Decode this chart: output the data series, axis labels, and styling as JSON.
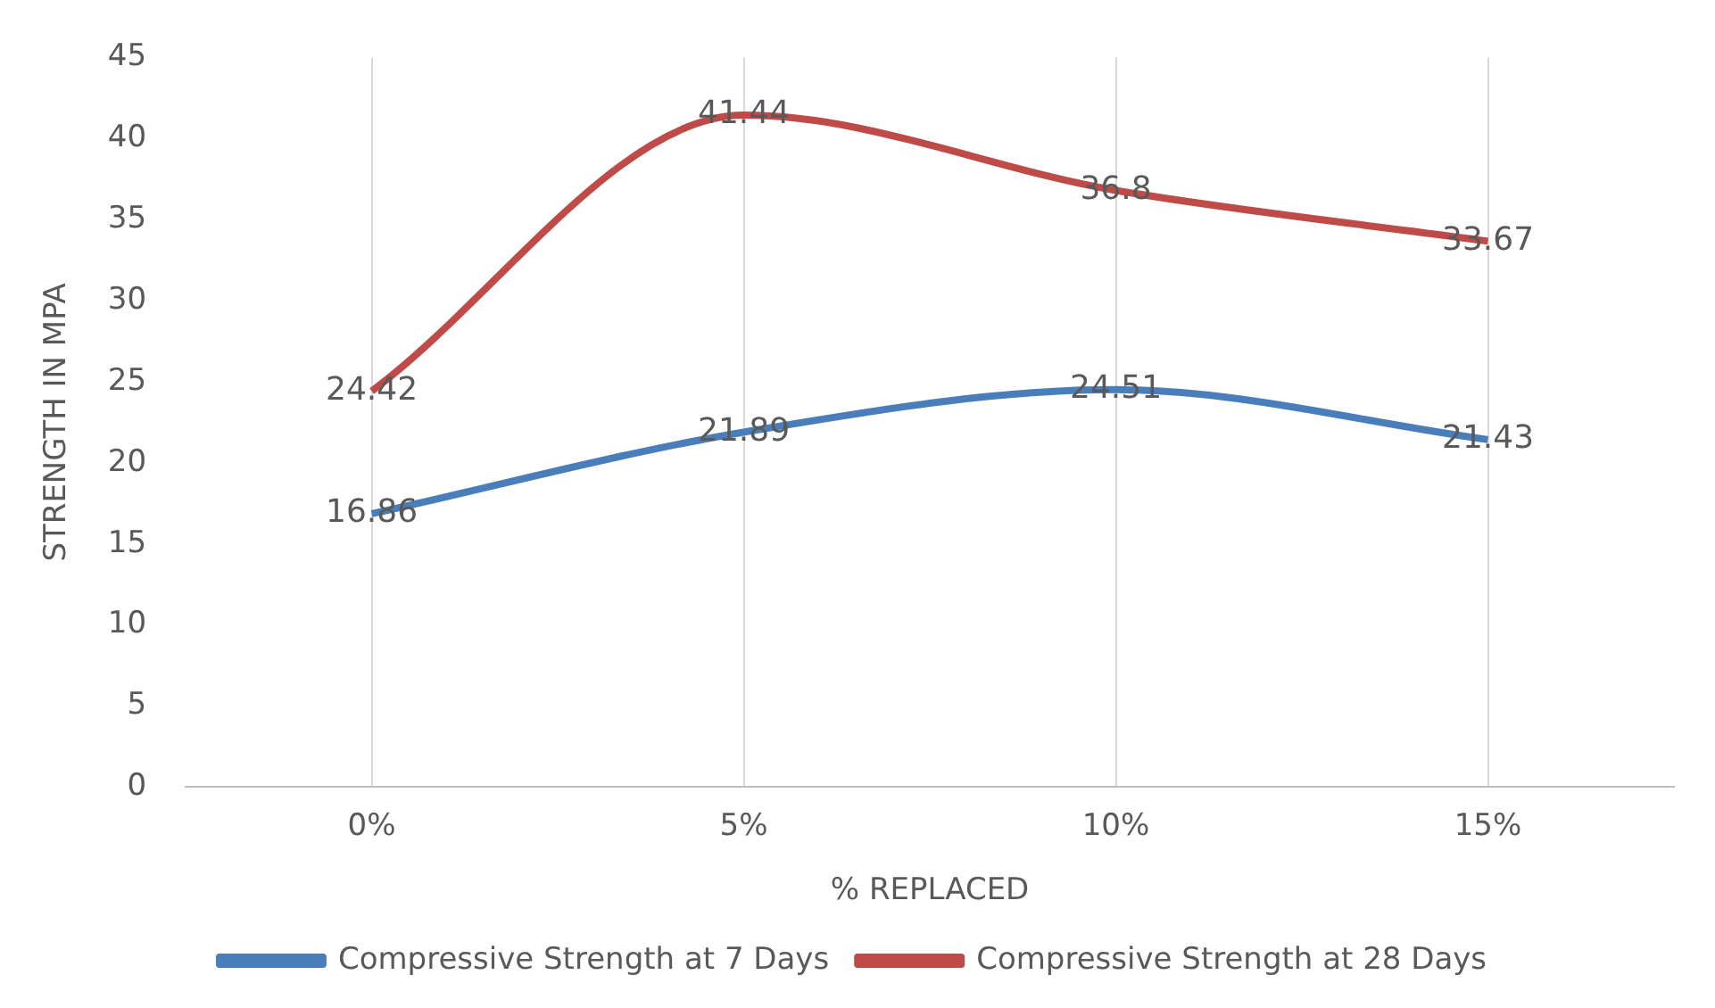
{
  "chart_data": {
    "type": "line",
    "xlabel": "% REPLACED",
    "ylabel": "STRENGTH IN MPA",
    "categories": [
      "0%",
      "5%",
      "10%",
      "15%"
    ],
    "series": [
      {
        "name": "Compressive Strength at 7 Days",
        "color": "#4a7ebb",
        "values": [
          16.86,
          21.89,
          24.51,
          21.43
        ]
      },
      {
        "name": "Compressive Strength at 28 Days",
        "color": "#be4b48",
        "values": [
          24.42,
          41.44,
          36.8,
          33.67
        ]
      }
    ],
    "ylim": [
      0,
      45
    ],
    "yticks": [
      0,
      5,
      10,
      15,
      20,
      25,
      30,
      35,
      40,
      45
    ],
    "grid": "x",
    "legend": "bottom",
    "data_labels": true,
    "marker": "none",
    "line_style": "solid"
  }
}
